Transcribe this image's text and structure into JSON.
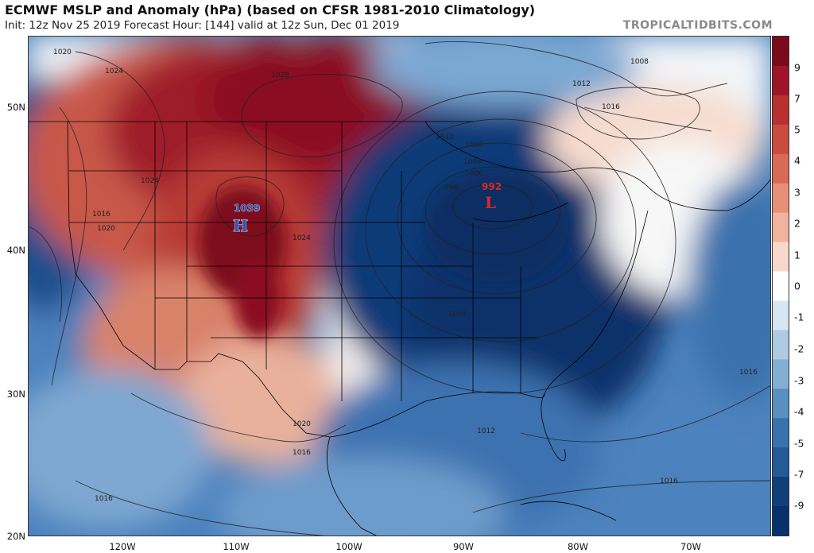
{
  "header": {
    "title": "ECMWF MSLP and Anomaly (hPa) (based on CFSR 1981-2010 Climatology)",
    "subtitle": "Init: 12z Nov 25 2019   Forecast Hour: [144]   valid at 12z Sun, Dec 01 2019",
    "credit": "TROPICALTIDBITS.COM"
  },
  "axes": {
    "lat_labels": [
      "50N",
      "40N",
      "30N",
      "20N"
    ],
    "lon_labels": [
      "120W",
      "110W",
      "100W",
      "90W",
      "80W",
      "70W"
    ]
  },
  "colorbar": {
    "labels": [
      "9",
      "7",
      "5",
      "4",
      "3",
      "2",
      "1",
      "0",
      "-1",
      "-2",
      "-3",
      "-4",
      "-5",
      "-7",
      "-9"
    ],
    "colors": [
      "#7a0a1c",
      "#9d1528",
      "#b8302f",
      "#c94c3e",
      "#d86a56",
      "#e69077",
      "#f0b49e",
      "#f8d8cb",
      "#ffffff",
      "#d6e6f2",
      "#aecbe4",
      "#84afd4",
      "#5a8fc2",
      "#3a72ad",
      "#245a96",
      "#103f7a",
      "#08306b"
    ]
  },
  "pressure_centers": {
    "high": {
      "letter": "H",
      "value": "1039",
      "color": "#2a55b8"
    },
    "low": {
      "letter": "L",
      "value": "992",
      "color": "#d62a2a"
    }
  },
  "isobar_labels": [
    "1020",
    "1024",
    "1028",
    "1008",
    "1012",
    "1016",
    "1012",
    "1008",
    "1004",
    "1000",
    "996",
    "1024",
    "1016",
    "1020",
    "1024",
    "1004",
    "1016",
    "1020",
    "1016",
    "1012",
    "1016",
    "1016"
  ]
}
